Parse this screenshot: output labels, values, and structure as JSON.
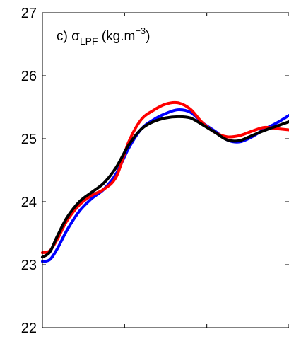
{
  "chart_data": {
    "type": "line",
    "panel_label": "c) ",
    "title_symbol": "σ",
    "title_subscript": "LPF",
    "title_units_prefix": " (kg.m",
    "title_units_superscript": "−3",
    "title_units_suffix": ")",
    "ylim": [
      22,
      27
    ],
    "y_ticks": [
      "22",
      "23",
      "24",
      "25",
      "26",
      "27"
    ],
    "x_ticks_count": 3,
    "xlim": [
      0,
      1
    ],
    "grid": false,
    "series": [
      {
        "color": "#0000ff",
        "x": [
          0,
          0.03,
          0.06,
          0.1,
          0.15,
          0.2,
          0.25,
          0.3,
          0.35,
          0.4,
          0.45,
          0.5,
          0.55,
          0.6,
          0.65,
          0.7,
          0.75,
          0.8,
          0.85,
          0.9,
          0.95,
          1.0
        ],
        "y": [
          23.05,
          23.08,
          23.25,
          23.55,
          23.85,
          24.05,
          24.2,
          24.45,
          24.85,
          25.15,
          25.3,
          25.4,
          25.46,
          25.42,
          25.25,
          25.12,
          24.98,
          24.95,
          25.03,
          25.15,
          25.25,
          25.37
        ]
      },
      {
        "color": "#ff0000",
        "x": [
          0,
          0.03,
          0.06,
          0.1,
          0.15,
          0.2,
          0.25,
          0.3,
          0.35,
          0.4,
          0.45,
          0.5,
          0.55,
          0.6,
          0.65,
          0.7,
          0.75,
          0.8,
          0.85,
          0.9,
          0.95,
          1.0
        ],
        "y": [
          23.19,
          23.22,
          23.4,
          23.7,
          23.95,
          24.1,
          24.2,
          24.4,
          24.95,
          25.3,
          25.45,
          25.55,
          25.57,
          25.47,
          25.25,
          25.1,
          25.03,
          25.05,
          25.12,
          25.18,
          25.16,
          25.14
        ]
      },
      {
        "color": "#000000",
        "x": [
          0,
          0.03,
          0.06,
          0.1,
          0.15,
          0.2,
          0.25,
          0.3,
          0.35,
          0.4,
          0.45,
          0.5,
          0.55,
          0.6,
          0.65,
          0.7,
          0.75,
          0.8,
          0.85,
          0.9,
          0.95,
          1.0
        ],
        "y": [
          23.12,
          23.2,
          23.45,
          23.75,
          24.0,
          24.15,
          24.3,
          24.55,
          24.9,
          25.15,
          25.27,
          25.33,
          25.35,
          25.33,
          25.22,
          25.1,
          24.98,
          24.97,
          25.05,
          25.13,
          25.2,
          25.27
        ]
      }
    ]
  }
}
